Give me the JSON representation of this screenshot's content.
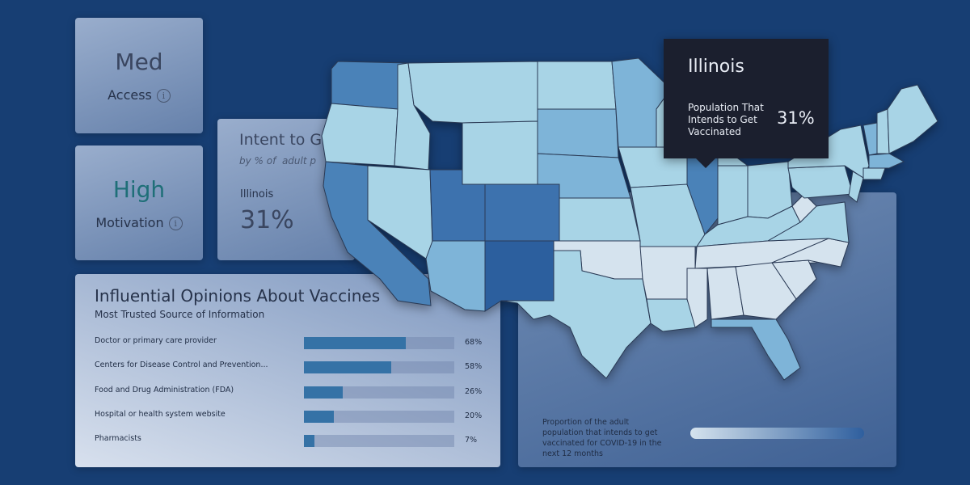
{
  "kpis": {
    "access": {
      "value": "Med",
      "label": "Access",
      "info_icon": "i"
    },
    "motivation": {
      "value": "High",
      "label": "Motivation",
      "info_icon": "i"
    }
  },
  "intent_panel": {
    "title": "Intent to G",
    "subtitle": "by % of  adult p",
    "state": "Illinois",
    "value": "31%"
  },
  "opinions": {
    "title": "Influential Opinions About Vaccines",
    "subtitle": "Most Trusted Source of Information",
    "items": [
      {
        "label": "Doctor or primary care provider",
        "percent": 68,
        "percent_text": "68%"
      },
      {
        "label": "Centers for Disease Control and Prevention...",
        "percent": 58,
        "percent_text": "58%"
      },
      {
        "label": "Food and Drug Administration (FDA)",
        "percent": 26,
        "percent_text": "26%"
      },
      {
        "label": "Hospital or health system website",
        "percent": 20,
        "percent_text": "20%"
      },
      {
        "label": "Pharmacists",
        "percent": 7,
        "percent_text": "7%"
      }
    ]
  },
  "map": {
    "legend_text": "Proportion of the adult population that intends to get vaccinated for COVID-19 in the next 12 months",
    "legend_colors": [
      "#d5e3ee",
      "#2f5f9e"
    ]
  },
  "tooltip": {
    "state": "Illinois",
    "label": "Population That Intends to Get Vaccinated",
    "value": "31%"
  },
  "colors": {
    "background": "#173e73",
    "bar_fill": "#3572a6",
    "motivation_accent": "#1f6f78",
    "tooltip_bg": "#1b1f2e"
  }
}
